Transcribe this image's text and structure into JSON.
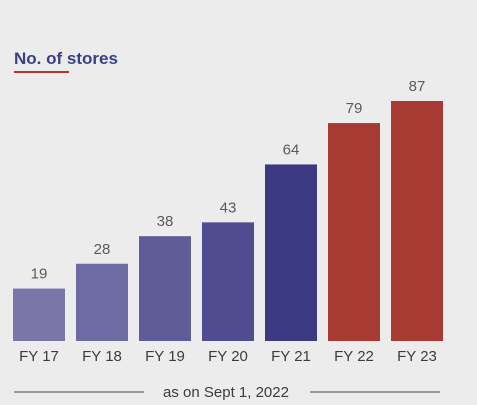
{
  "chart_data": {
    "type": "bar",
    "title": "No. of stores",
    "categories": [
      "FY 17",
      "FY 18",
      "FY 19",
      "FY 20",
      "FY 21",
      "FY 22",
      "FY 23"
    ],
    "values": [
      19,
      28,
      38,
      43,
      64,
      79,
      87
    ],
    "bar_colors": [
      "#7a77a8",
      "#6e6ba2",
      "#5f5c99",
      "#4f4c90",
      "#3b3a80",
      "#a83a34",
      "#a83a34"
    ],
    "ylim": [
      0,
      87
    ],
    "xlabel": "",
    "ylabel": "",
    "grid": false,
    "legend": "none",
    "footnote": "as on Sept 1, 2022"
  },
  "colors": {
    "background": "#ececec",
    "title": "#3b3f86",
    "title_underline": "#c0322d",
    "value_label": "#5a5a5a",
    "axis_label": "#3c3c3c",
    "rule": "#6a6a6a"
  }
}
